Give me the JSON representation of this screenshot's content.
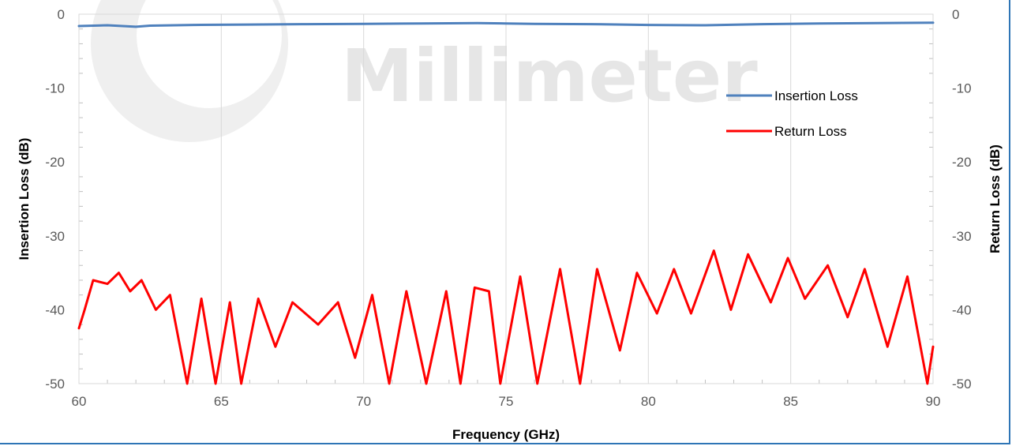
{
  "chart_data": {
    "type": "line",
    "title": "",
    "xlabel": "Frequency (GHz)",
    "ylabel": "Insertion Loss (dB)",
    "y2label": "Return Loss (dB)",
    "xlim": [
      60,
      90
    ],
    "ylim": [
      -50,
      0
    ],
    "y2lim": [
      -50,
      0
    ],
    "x_ticks": [
      "60",
      "65",
      "70",
      "75",
      "80",
      "85",
      "90"
    ],
    "y_ticks": [
      "0",
      "-10",
      "-20",
      "-30",
      "-40",
      "-50"
    ],
    "y2_ticks": [
      "0",
      "-10",
      "-20",
      "-30",
      "-40",
      "-50"
    ],
    "grid": "vertical major gridlines",
    "legend_position": "top-right",
    "series": [
      {
        "name": "Insertion Loss",
        "color": "#4f81bd",
        "axis": "left",
        "x": [
          60,
          61,
          62,
          62.5,
          64,
          66,
          68,
          70,
          72,
          74,
          75,
          76,
          78,
          80,
          82,
          84,
          86,
          88,
          90
        ],
        "y": [
          -1.6,
          -1.5,
          -1.7,
          -1.55,
          -1.45,
          -1.4,
          -1.35,
          -1.3,
          -1.25,
          -1.2,
          -1.25,
          -1.3,
          -1.35,
          -1.45,
          -1.5,
          -1.35,
          -1.25,
          -1.2,
          -1.15
        ]
      },
      {
        "name": "Return Loss",
        "color": "#ff0000",
        "axis": "right",
        "x": [
          60,
          60.2,
          60.5,
          61,
          61.4,
          61.8,
          62.2,
          62.7,
          63.2,
          63.8,
          64.3,
          64.8,
          65.3,
          65.7,
          66.3,
          66.9,
          67.5,
          68.4,
          69.1,
          69.7,
          70.3,
          70.9,
          71.5,
          72.2,
          72.9,
          73.4,
          73.9,
          74.4,
          74.8,
          75.5,
          76.1,
          76.9,
          77.6,
          78.2,
          79,
          79.6,
          80.3,
          80.9,
          81.5,
          82.3,
          82.9,
          83.5,
          84.3,
          84.9,
          85.5,
          86.3,
          87,
          87.6,
          88.4,
          89.1,
          89.8,
          90
        ],
        "y": [
          -42.5,
          -40,
          -36,
          -36.5,
          -35,
          -37.5,
          -36,
          -40,
          -38,
          -50,
          -38.5,
          -50,
          -39,
          -50,
          -38.5,
          -45,
          -39,
          -42,
          -39,
          -46.5,
          -38,
          -50,
          -37.5,
          -50,
          -37.5,
          -50,
          -37,
          -37.5,
          -50,
          -35.5,
          -50,
          -34.5,
          -50,
          -34.5,
          -45.5,
          -35,
          -40.5,
          -34.5,
          -40.5,
          -32,
          -40,
          -32.5,
          -39,
          -33,
          -38.5,
          -34,
          -41,
          -34.5,
          -45,
          -35.5,
          -50,
          -45
        ]
      }
    ],
    "watermark": "Millimeter"
  }
}
